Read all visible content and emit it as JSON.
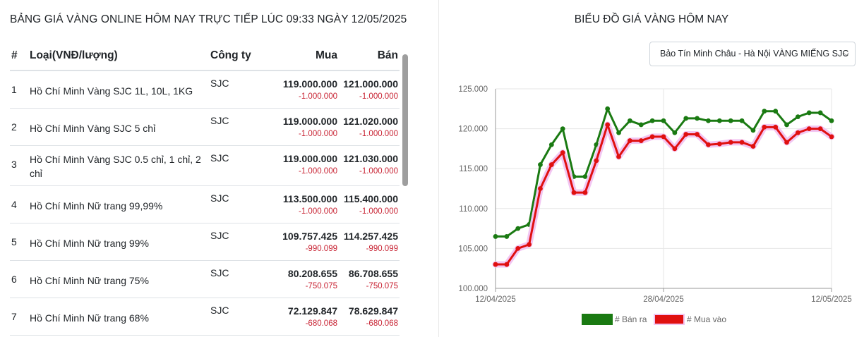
{
  "left": {
    "title": "BẢNG GIÁ VÀNG ONLINE HÔM NAY TRỰC TIẾP LÚC 09:33 NGÀY 12/05/2025",
    "headers": {
      "idx": "#",
      "type": "Loại(VNĐ/lượng)",
      "company": "Công ty",
      "buy": "Mua",
      "sell": "Bán"
    },
    "rows": [
      {
        "idx": "1",
        "name": "Hồ Chí Minh Vàng SJC 1L, 10L, 1KG",
        "company": "SJC",
        "buy": "119.000.000",
        "buy_delta": "-1.000.000",
        "sell": "121.000.000",
        "sell_delta": "-1.000.000"
      },
      {
        "idx": "2",
        "name": "Hồ Chí Minh Vàng SJC 5 chỉ",
        "company": "SJC",
        "buy": "119.000.000",
        "buy_delta": "-1.000.000",
        "sell": "121.020.000",
        "sell_delta": "-1.000.000"
      },
      {
        "idx": "3",
        "name": "Hồ Chí Minh Vàng SJC 0.5 chỉ, 1 chỉ, 2 chỉ",
        "company": "SJC",
        "buy": "119.000.000",
        "buy_delta": "-1.000.000",
        "sell": "121.030.000",
        "sell_delta": "-1.000.000"
      },
      {
        "idx": "4",
        "name": "Hồ Chí Minh Nữ trang 99,99%",
        "company": "SJC",
        "buy": "113.500.000",
        "buy_delta": "-1.000.000",
        "sell": "115.400.000",
        "sell_delta": "-1.000.000"
      },
      {
        "idx": "5",
        "name": "Hồ Chí Minh Nữ trang 99%",
        "company": "SJC",
        "buy": "109.757.425",
        "buy_delta": "-990.099",
        "sell": "114.257.425",
        "sell_delta": "-990.099"
      },
      {
        "idx": "6",
        "name": "Hồ Chí Minh Nữ trang 75%",
        "company": "SJC",
        "buy": "80.208.655",
        "buy_delta": "-750.075",
        "sell": "86.708.655",
        "sell_delta": "-750.075"
      },
      {
        "idx": "7",
        "name": "Hồ Chí Minh Nữ trang 68%",
        "company": "SJC",
        "buy": "72.129.847",
        "buy_delta": "-680.068",
        "sell": "78.629.847",
        "sell_delta": "-680.068"
      }
    ]
  },
  "right": {
    "title": "BIỂU ĐỒ GIÁ VÀNG HÔM NAY",
    "select_value": "Bảo Tín Minh Châu - Hà Nội VÀNG MIẾNG SJC"
  },
  "colors": {
    "sell": "#1a7a12",
    "buy": "#e01010",
    "buy_glow": "#f2c6f2",
    "delta": "#c82333"
  },
  "chart_data": {
    "type": "line",
    "x_tick_labels": [
      "12/04/2025",
      "28/04/2025",
      "12/05/2025"
    ],
    "x": [
      "12/04/2025",
      "13/04/2025",
      "14/04/2025",
      "15/04/2025",
      "16/04/2025",
      "17/04/2025",
      "18/04/2025",
      "19/04/2025",
      "20/04/2025",
      "21/04/2025",
      "22/04/2025",
      "23/04/2025",
      "24/04/2025",
      "25/04/2025",
      "26/04/2025",
      "27/04/2025",
      "28/04/2025",
      "29/04/2025",
      "30/04/2025",
      "01/05/2025",
      "02/05/2025",
      "03/05/2025",
      "04/05/2025",
      "05/05/2025",
      "06/05/2025",
      "07/05/2025",
      "08/05/2025",
      "09/05/2025",
      "10/05/2025",
      "11/05/2025",
      "12/05/2025"
    ],
    "series": [
      {
        "name": "# Bán ra",
        "values": [
          106500,
          106500,
          107500,
          108000,
          115500,
          118000,
          120000,
          114000,
          114000,
          118000,
          122500,
          119500,
          121000,
          120500,
          121000,
          121000,
          119500,
          121300,
          121300,
          121000,
          121000,
          121000,
          121000,
          119800,
          122200,
          122200,
          120500,
          121500,
          122000,
          122000,
          121000
        ]
      },
      {
        "name": "# Mua vào",
        "values": [
          103000,
          103000,
          105000,
          105500,
          112500,
          115500,
          117000,
          112000,
          112000,
          116000,
          120500,
          116500,
          118500,
          118500,
          119000,
          119000,
          117500,
          119300,
          119300,
          118000,
          118100,
          118300,
          118300,
          117800,
          120200,
          120200,
          118300,
          119500,
          120000,
          120000,
          119000
        ]
      }
    ],
    "y_ticks": [
      "100.000",
      "105.000",
      "110.000",
      "115.000",
      "120.000",
      "125.000"
    ],
    "ylim": [
      100000,
      125000
    ],
    "legend_position": "bottom",
    "grid": true
  }
}
